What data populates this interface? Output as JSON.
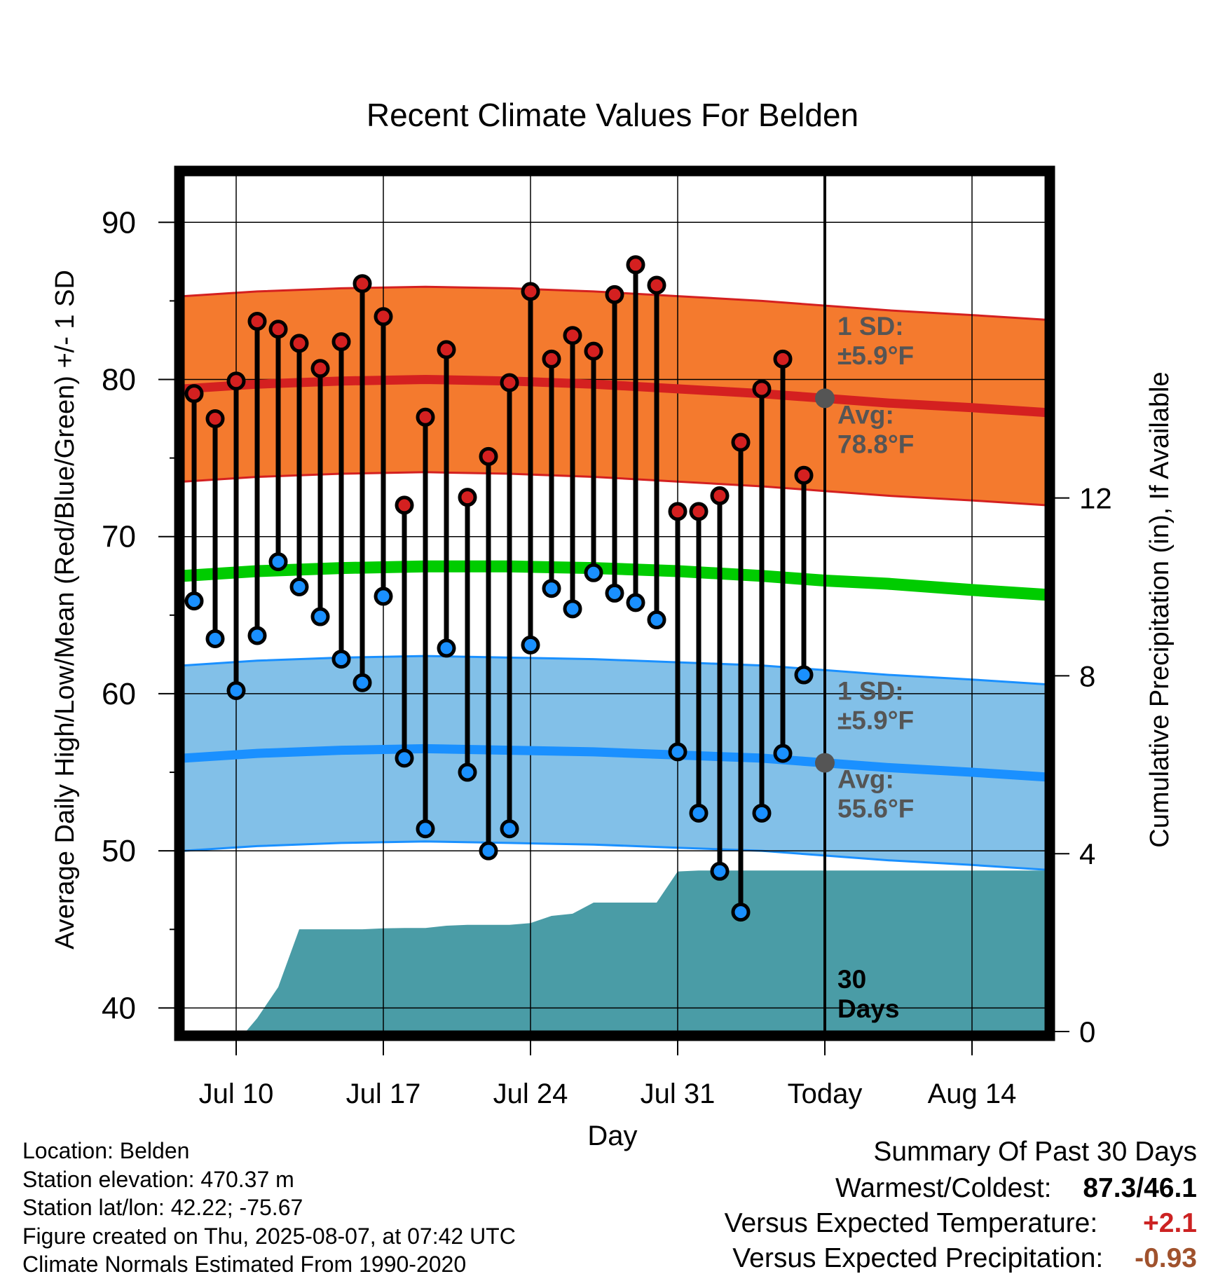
{
  "chart_data": {
    "type": "line",
    "title": "Recent Climate Values For Belden",
    "xlabel": "Day",
    "ylabel": "Average Daily High/Low/Mean (Red/Blue/Green) +/- 1 SD",
    "y2label": "Cumulative Precipitation (in), If Available",
    "ylim": [
      38.5,
      93
    ],
    "y2lim": [
      0,
      19.26
    ],
    "xlim": [
      -0.5,
      40.5
    ],
    "yticks": [
      40,
      50,
      60,
      70,
      80,
      90
    ],
    "y2ticks": [
      0,
      4,
      8,
      12
    ],
    "xticks": [
      {
        "day": 2,
        "label": "Jul 10"
      },
      {
        "day": 9,
        "label": "Jul 17"
      },
      {
        "day": 16,
        "label": "Jul 24"
      },
      {
        "day": 23,
        "label": "Jul 31"
      },
      {
        "day": 30,
        "label": "Today"
      },
      {
        "day": 37,
        "label": "Aug 14"
      }
    ],
    "grid": true,
    "today_day": 30,
    "observed_days": [
      0,
      1,
      2,
      3,
      4,
      5,
      6,
      7,
      8,
      9,
      10,
      11,
      12,
      13,
      14,
      15,
      16,
      17,
      18,
      19,
      20,
      21,
      22,
      23,
      24,
      25,
      26,
      27,
      28,
      29
    ],
    "highs": [
      79.1,
      77.5,
      79.9,
      83.7,
      83.2,
      82.3,
      80.7,
      82.4,
      86.1,
      84.0,
      72.0,
      77.6,
      81.9,
      72.5,
      75.1,
      79.8,
      85.6,
      81.3,
      82.8,
      81.8,
      85.4,
      87.3,
      86.0,
      71.6,
      71.6,
      72.6,
      76.0,
      79.4,
      81.3,
      73.9
    ],
    "lows": [
      65.9,
      63.5,
      60.2,
      63.7,
      68.4,
      66.8,
      64.9,
      62.2,
      60.7,
      66.2,
      55.9,
      51.4,
      62.9,
      55.0,
      50.0,
      51.4,
      63.1,
      66.7,
      65.4,
      67.7,
      66.4,
      65.8,
      64.7,
      56.3,
      52.4,
      48.7,
      46.1,
      52.4,
      56.2,
      61.2
    ],
    "normals_days": [
      -0.5,
      3,
      7,
      11,
      15,
      19,
      23,
      27,
      30,
      33,
      37,
      40.5
    ],
    "normal_high": [
      79.4,
      79.7,
      79.9,
      80.0,
      79.9,
      79.7,
      79.4,
      79.1,
      78.8,
      78.5,
      78.2,
      77.9
    ],
    "normal_low": [
      55.9,
      56.2,
      56.4,
      56.5,
      56.4,
      56.3,
      56.1,
      55.9,
      55.6,
      55.3,
      55.0,
      54.7
    ],
    "normal_mean": [
      67.5,
      67.8,
      68.0,
      68.1,
      68.1,
      68.0,
      67.8,
      67.5,
      67.2,
      67.0,
      66.6,
      66.3
    ],
    "sd": 5.9,
    "precip_x": [
      -0.5,
      0.5,
      1.5,
      2.5,
      3,
      4,
      5,
      6,
      7,
      8,
      9,
      10,
      11,
      12,
      13,
      14,
      15,
      16,
      17,
      18,
      19,
      20,
      21,
      22,
      23,
      24,
      25,
      26,
      27,
      28,
      29,
      30,
      40.5
    ],
    "precip_y": [
      0,
      0,
      0,
      0.02,
      0.3,
      1.0,
      2.3,
      2.3,
      2.3,
      2.3,
      2.32,
      2.33,
      2.33,
      2.38,
      2.4,
      2.4,
      2.4,
      2.44,
      2.6,
      2.65,
      2.9,
      2.9,
      2.9,
      2.9,
      3.6,
      3.62,
      3.62,
      3.62,
      3.62,
      3.62,
      3.62,
      3.62,
      3.62
    ],
    "annotations": {
      "high_sd": "1 SD:",
      "high_sd_val": "±5.9°F",
      "high_avg": "Avg:",
      "high_avg_val": "78.8°F",
      "low_sd": "1 SD:",
      "low_sd_val": "±5.9°F",
      "low_avg": "Avg:",
      "low_avg_val": "55.6°F",
      "days_num": "30",
      "days_word": "Days"
    },
    "colors": {
      "high_band": "#f47a2e",
      "high_line": "#d42020",
      "low_band": "#82c0e8",
      "low_line": "#1a90ff",
      "mean_line": "#00cc00",
      "precip": "#4a9ca6",
      "annotation": "#555555",
      "high_dot": "#d42020",
      "low_dot": "#1a90ff"
    }
  },
  "info": {
    "location": "Location: Belden",
    "elevation": "Station elevation: 470.37 m",
    "latlon": "Station lat/lon: 42.22; -75.67",
    "created": "Figure created on Thu, 2025-08-07, at 07:42 UTC",
    "normals": "Climate Normals Estimated From 1990-2020"
  },
  "summary": {
    "title": "Summary Of Past 30 Days",
    "warmest_label": "Warmest/Coldest:",
    "warmest_value": "87.3/46.1",
    "temp_label": "Versus Expected Temperature:",
    "temp_value": "+2.1",
    "temp_color": "#cc2222",
    "precip_label": "Versus Expected Precipitation:",
    "precip_value": "-0.93",
    "precip_color": "#a0522d"
  }
}
